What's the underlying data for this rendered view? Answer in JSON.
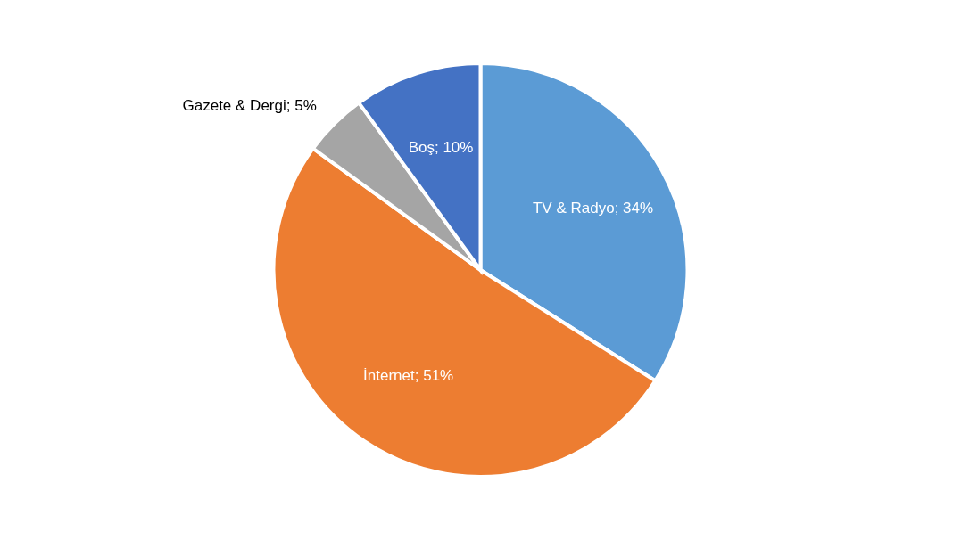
{
  "chart_data": {
    "type": "pie",
    "categories": [
      "TV & Radyo",
      "İnternet",
      "Gazete & Dergi",
      "Boş"
    ],
    "values": [
      34,
      51,
      5,
      10
    ],
    "colors": [
      "#5b9bd5",
      "#ed7d31",
      "#a5a5a5",
      "#4472c4"
    ],
    "value_labels": [
      "34%",
      "51%",
      "5%",
      "10%"
    ]
  }
}
